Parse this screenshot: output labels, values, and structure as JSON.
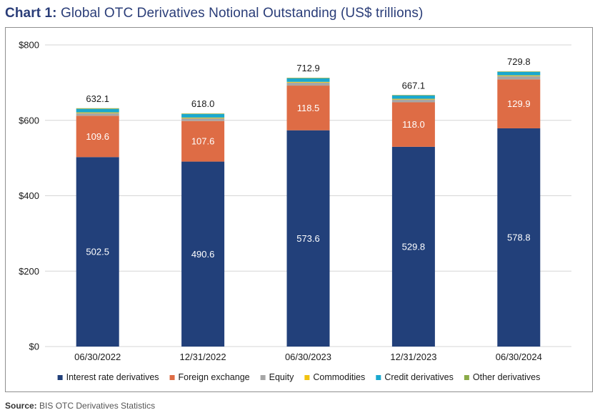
{
  "header": {
    "chart_number": "Chart 1:",
    "title": "Global OTC Derivatives Notional Outstanding (US$ trillions)"
  },
  "footer": {
    "source_label": "Source:",
    "source_text": "BIS OTC Derivatives Statistics"
  },
  "chart_data": {
    "type": "bar",
    "stacked": true,
    "title": "Global OTC Derivatives Notional Outstanding (US$ trillions)",
    "xlabel": "",
    "ylabel": "",
    "ylim": [
      0,
      800
    ],
    "yticks": [
      0,
      200,
      400,
      600,
      800
    ],
    "ytick_labels": [
      "$0",
      "$200",
      "$400",
      "$600",
      "$800"
    ],
    "grid": true,
    "legend_position": "bottom",
    "categories": [
      "06/30/2022",
      "12/31/2022",
      "06/30/2023",
      "12/31/2023",
      "06/30/2024"
    ],
    "totals": [
      632.1,
      618.0,
      712.9,
      667.1,
      729.8
    ],
    "total_labels": [
      "632.1",
      "618.0",
      "712.9",
      "667.1",
      "729.8"
    ],
    "series": [
      {
        "name": "Interest rate derivatives",
        "color": "#22407a",
        "values": [
          502.5,
          490.6,
          573.6,
          529.8,
          578.8
        ],
        "labels": [
          "502.5",
          "490.6",
          "573.6",
          "529.8",
          "578.8"
        ],
        "show_labels": true
      },
      {
        "name": "Foreign exchange",
        "color": "#de6c45",
        "values": [
          109.6,
          107.6,
          118.5,
          118.0,
          129.9
        ],
        "labels": [
          "109.6",
          "107.6",
          "118.5",
          "118.0",
          "129.9"
        ],
        "show_labels": true
      },
      {
        "name": "Equity",
        "color": "#a6a6a6",
        "values": [
          7.0,
          7.2,
          7.9,
          7.4,
          8.6
        ],
        "show_labels": false
      },
      {
        "name": "Commodities",
        "color": "#f2c30f",
        "values": [
          2.0,
          1.9,
          2.0,
          1.9,
          2.1
        ],
        "show_labels": false
      },
      {
        "name": "Credit derivatives",
        "color": "#1aa8cf",
        "values": [
          9.0,
          9.2,
          9.3,
          8.6,
          9.0
        ],
        "show_labels": false
      },
      {
        "name": "Other derivatives",
        "color": "#8bab48",
        "values": [
          2.0,
          1.5,
          1.6,
          1.4,
          1.4
        ],
        "show_labels": false
      }
    ]
  }
}
